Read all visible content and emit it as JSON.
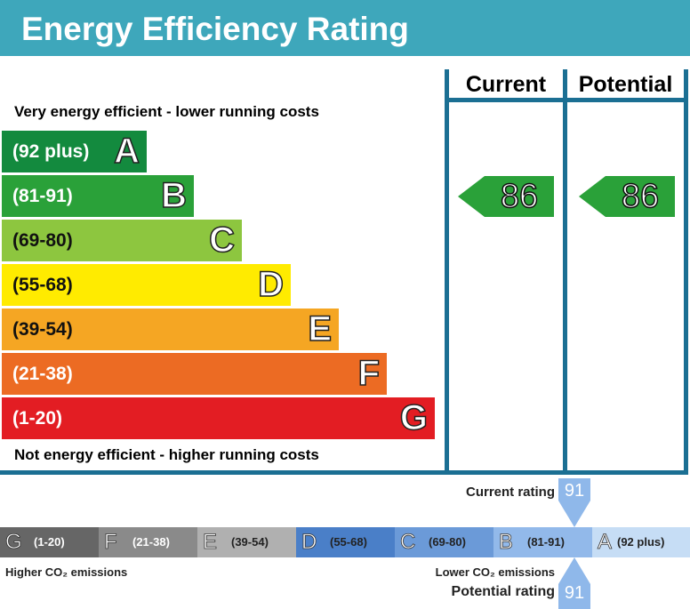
{
  "title": "Energy Efficiency Rating",
  "columns": {
    "current": "Current",
    "potential": "Potential"
  },
  "top_note": "Very energy efficient - lower running costs",
  "bottom_note": "Not energy efficient - higher running costs",
  "chart_data": {
    "type": "bar",
    "bands": [
      {
        "range": "(92 plus)",
        "letter": "A",
        "color": "#138a3e"
      },
      {
        "range": "(81-91)",
        "letter": "B",
        "color": "#2aa139"
      },
      {
        "range": "(69-80)",
        "letter": "C",
        "color": "#8dc63f"
      },
      {
        "range": "(55-68)",
        "letter": "D",
        "color": "#ffeb00"
      },
      {
        "range": "(39-54)",
        "letter": "E",
        "color": "#f5a623"
      },
      {
        "range": "(21-38)",
        "letter": "F",
        "color": "#ec6b23"
      },
      {
        "range": "(1-20)",
        "letter": "G",
        "color": "#e31d23"
      }
    ],
    "current": 86,
    "potential": 86,
    "arrow_color": "#2aa139"
  },
  "co2": {
    "segments": [
      {
        "letter": "G",
        "range": "(1-20)",
        "color": "#666666"
      },
      {
        "letter": "F",
        "range": "(21-38)",
        "color": "#8a8a8a"
      },
      {
        "letter": "E",
        "range": "(39-54)",
        "color": "#b0b0b0"
      },
      {
        "letter": "D",
        "range": "(55-68)",
        "color": "#4a7fc8"
      },
      {
        "letter": "C",
        "range": "(69-80)",
        "color": "#6b9ad8"
      },
      {
        "letter": "B",
        "range": "(81-91)",
        "color": "#92b9ea"
      },
      {
        "letter": "A",
        "range": "(92 plus)",
        "color": "#c6ddf5"
      }
    ],
    "higher": "Higher CO₂ emissions",
    "lower": "Lower CO₂ emissions",
    "current_label": "Current rating",
    "current": "91",
    "potential_label": "Potential rating",
    "potential": "91",
    "pointer_color": "#8fb8ea"
  }
}
